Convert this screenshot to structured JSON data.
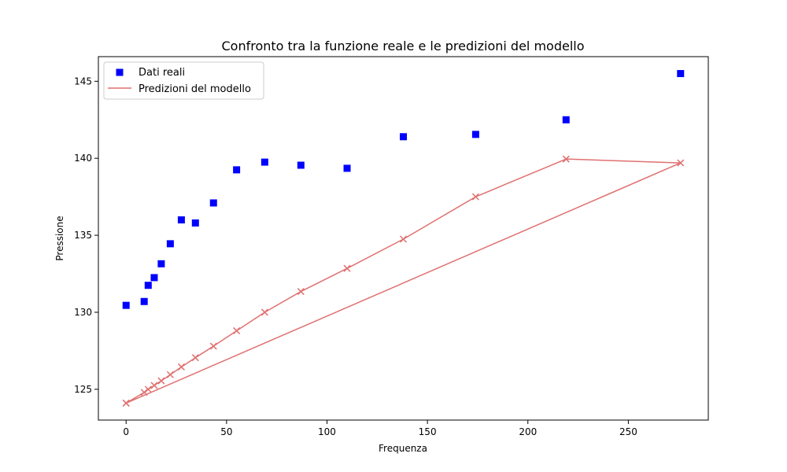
{
  "chart_data": {
    "type": "scatter",
    "title": "Confronto tra la funzione reale e le predizioni del modello",
    "xlabel": "Frequenza",
    "ylabel": "Pressione",
    "xlim": [
      -13.8,
      289.8
    ],
    "ylim": [
      123.0,
      146.6
    ],
    "xticks": [
      0,
      50,
      100,
      150,
      200,
      250
    ],
    "yticks": [
      125,
      130,
      135,
      140,
      145
    ],
    "grid": false,
    "legend": "top-left",
    "series": [
      {
        "name": "Dati reali",
        "kind": "scatter",
        "marker": "square",
        "color": "#0000ff",
        "x": [
          0,
          9,
          11,
          14,
          17.5,
          22,
          27.5,
          34.5,
          43.5,
          55,
          69,
          87,
          110,
          138,
          174,
          219,
          276
        ],
        "y": [
          130.45,
          130.7,
          131.75,
          132.25,
          133.15,
          134.45,
          136.0,
          135.8,
          137.1,
          139.25,
          139.75,
          139.55,
          139.35,
          141.4,
          141.55,
          142.5,
          145.5
        ]
      },
      {
        "name": "Predizioni del modello",
        "kind": "line",
        "marker": "x",
        "color": "#e07070",
        "x": [
          0,
          9,
          11,
          14,
          17.5,
          22,
          27.5,
          34.5,
          43.5,
          55,
          69,
          87,
          110,
          138,
          174,
          219,
          276,
          0
        ],
        "y": [
          124.1,
          124.8,
          125.0,
          125.25,
          125.55,
          125.95,
          126.45,
          127.05,
          127.8,
          128.8,
          130.0,
          131.35,
          132.85,
          134.75,
          137.5,
          139.95,
          139.7,
          124.1
        ]
      }
    ]
  }
}
